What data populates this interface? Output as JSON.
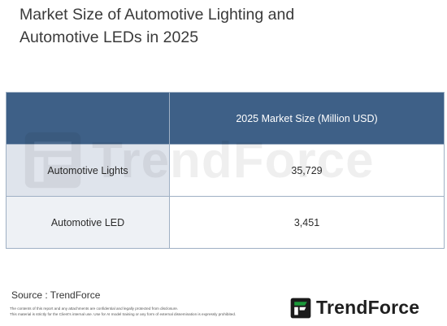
{
  "title_line1": "Market Size of Automotive Lighting and",
  "title_line2": "Automotive LEDs in 2025",
  "chart_data": {
    "type": "table",
    "columns": [
      "",
      "2025 Market Size (Million USD)"
    ],
    "rows": [
      {
        "label": "Automotive Lights",
        "value": "35,729"
      },
      {
        "label": "Automotive LED",
        "value": "3,451"
      }
    ]
  },
  "watermark": "TrendForce",
  "source": "Source : TrendForce",
  "disclaimer_line1": "The contents of this report and any attachments are confidential and legally protected from disclosure.",
  "disclaimer_line2": "This material is strictly for the Client's internal use. Use for AI model training or any form of external dissemination is expressly prohibited.",
  "brand": "TrendForce",
  "colors": {
    "header": "#3e6087",
    "label_cell": "#dfe4ec",
    "logo_green": "#1a9a3a"
  }
}
